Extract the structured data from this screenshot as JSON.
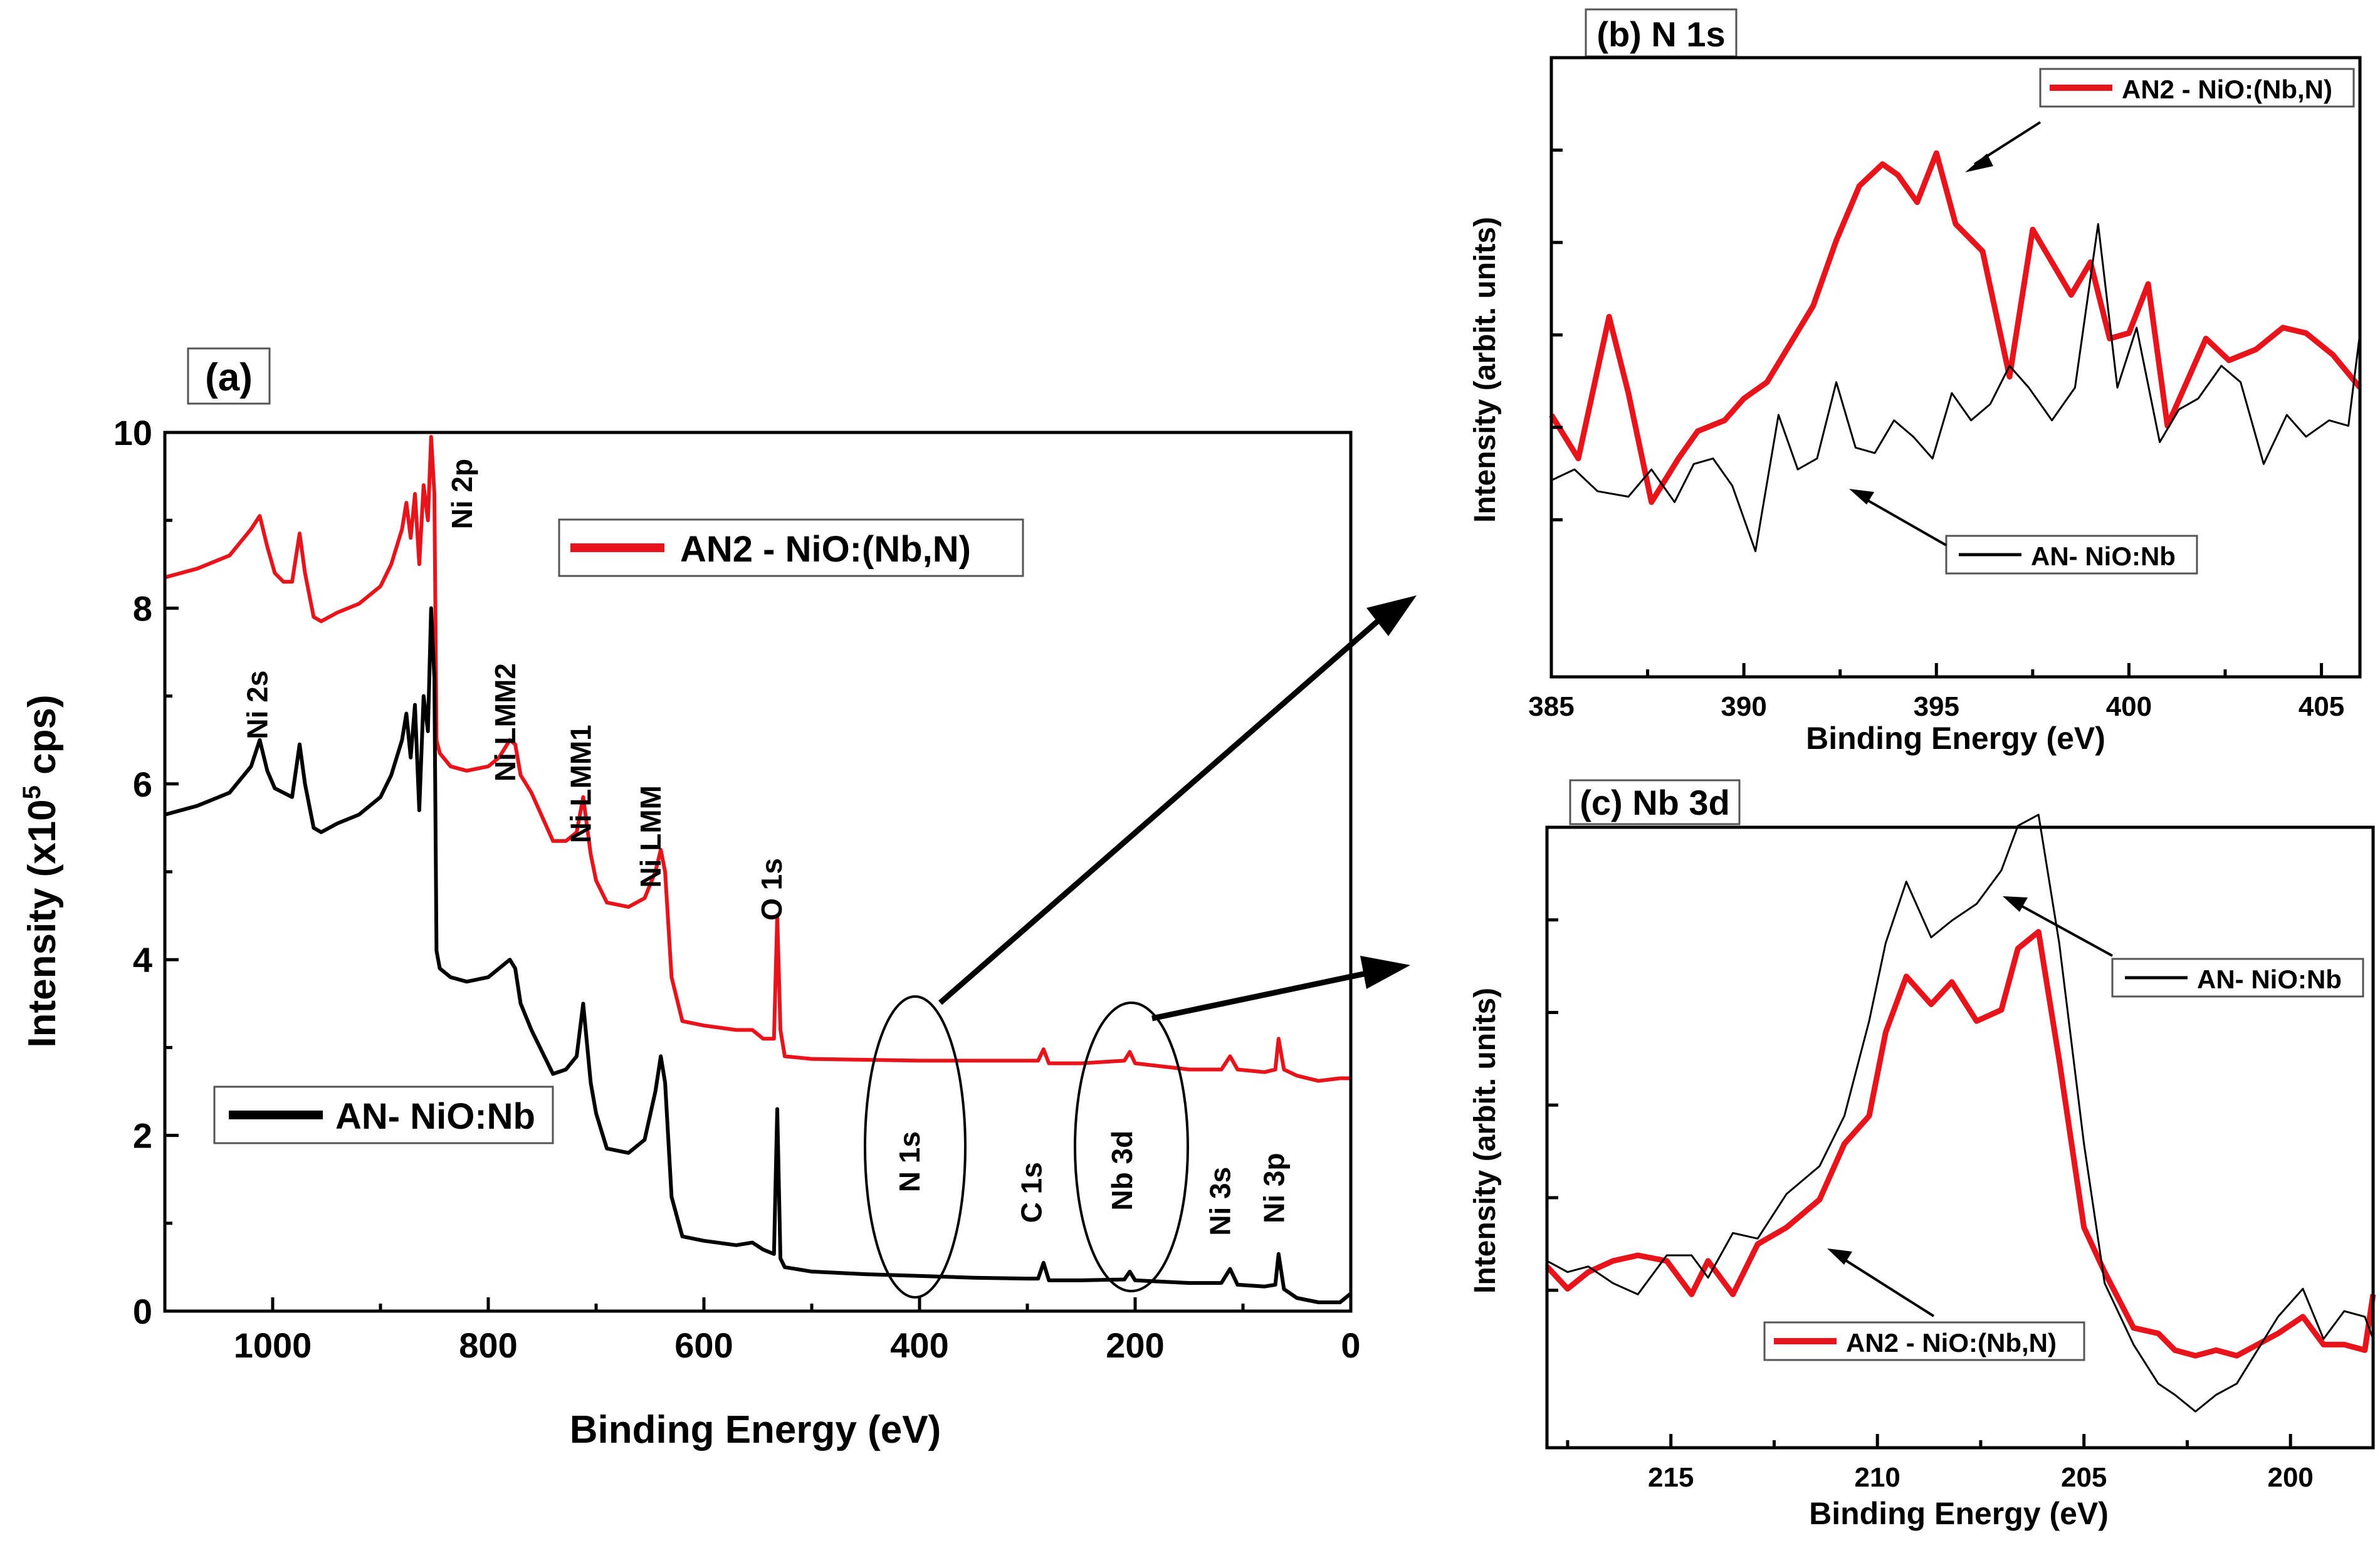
{
  "chart_data": [
    {
      "id": "a",
      "type": "line",
      "panel_label": "(a)",
      "xlabel": "Binding Energy (eV)",
      "ylabel_main": "Intensity (x10",
      "ylabel_sup": "5",
      "ylabel_end": " cps)",
      "xlim": [
        1100,
        0
      ],
      "ylim": [
        0,
        10
      ],
      "xticks": [
        1000,
        800,
        600,
        400,
        200,
        0
      ],
      "yticks": [
        0,
        2,
        4,
        6,
        8,
        10
      ],
      "series": [
        {
          "name": "AN2 - NiO:(Nb,N)",
          "color": "#e8141b",
          "x": [
            1100,
            1070,
            1040,
            1020,
            1012,
            1005,
            998,
            990,
            982,
            975,
            970,
            962,
            955,
            940,
            920,
            900,
            890,
            880,
            876,
            872,
            868,
            864,
            860,
            856,
            853,
            850,
            848,
            845,
            835,
            820,
            800,
            790,
            780,
            775,
            770,
            760,
            740,
            728,
            718,
            712,
            705,
            700,
            690,
            670,
            655,
            645,
            640,
            636,
            630,
            620,
            600,
            570,
            555,
            545,
            535,
            532,
            529,
            525,
            500,
            450,
            400,
            350,
            300,
            290,
            285,
            280,
            250,
            210,
            205,
            200,
            150,
            120,
            112,
            105,
            80,
            70,
            67,
            62,
            50,
            30,
            10,
            0
          ],
          "y": [
            8.35,
            8.45,
            8.6,
            8.9,
            9.05,
            8.7,
            8.4,
            8.3,
            8.3,
            8.85,
            8.4,
            7.9,
            7.85,
            7.95,
            8.05,
            8.25,
            8.5,
            8.9,
            9.2,
            8.8,
            9.3,
            8.5,
            9.4,
            9.0,
            9.95,
            9.3,
            6.5,
            6.35,
            6.2,
            6.15,
            6.2,
            6.3,
            6.5,
            6.45,
            6.1,
            5.9,
            5.35,
            5.35,
            5.45,
            5.85,
            5.2,
            4.9,
            4.65,
            4.6,
            4.7,
            5.0,
            5.25,
            5.0,
            3.8,
            3.3,
            3.25,
            3.2,
            3.2,
            3.1,
            3.1,
            4.5,
            3.2,
            2.9,
            2.87,
            2.86,
            2.85,
            2.85,
            2.85,
            2.85,
            2.98,
            2.82,
            2.82,
            2.85,
            2.95,
            2.82,
            2.75,
            2.75,
            2.9,
            2.75,
            2.72,
            2.75,
            3.1,
            2.75,
            2.68,
            2.62,
            2.65,
            2.65
          ]
        },
        {
          "name": "AN- NiO:Nb",
          "color": "#000000",
          "x": [
            1100,
            1070,
            1040,
            1020,
            1012,
            1005,
            998,
            990,
            982,
            975,
            970,
            962,
            955,
            940,
            920,
            900,
            890,
            880,
            876,
            872,
            868,
            864,
            860,
            856,
            853,
            850,
            848,
            845,
            835,
            820,
            800,
            790,
            780,
            775,
            770,
            760,
            740,
            728,
            718,
            712,
            705,
            700,
            690,
            670,
            655,
            645,
            640,
            636,
            630,
            620,
            600,
            570,
            555,
            545,
            535,
            532,
            529,
            525,
            500,
            450,
            400,
            350,
            300,
            290,
            285,
            280,
            250,
            210,
            205,
            200,
            150,
            120,
            112,
            105,
            80,
            70,
            67,
            62,
            50,
            30,
            10,
            0
          ],
          "y": [
            5.65,
            5.75,
            5.9,
            6.2,
            6.5,
            6.15,
            5.95,
            5.9,
            5.85,
            6.45,
            6.0,
            5.5,
            5.45,
            5.55,
            5.65,
            5.85,
            6.1,
            6.5,
            6.8,
            6.3,
            6.9,
            5.7,
            7.0,
            6.6,
            8.0,
            7.2,
            4.1,
            3.9,
            3.8,
            3.75,
            3.8,
            3.9,
            4.0,
            3.9,
            3.5,
            3.2,
            2.7,
            2.75,
            2.9,
            3.5,
            2.6,
            2.25,
            1.85,
            1.8,
            1.95,
            2.5,
            2.9,
            2.6,
            1.3,
            0.85,
            0.8,
            0.75,
            0.78,
            0.7,
            0.65,
            2.3,
            0.6,
            0.5,
            0.45,
            0.42,
            0.4,
            0.38,
            0.37,
            0.37,
            0.55,
            0.35,
            0.35,
            0.36,
            0.45,
            0.35,
            0.32,
            0.32,
            0.48,
            0.3,
            0.28,
            0.3,
            0.65,
            0.25,
            0.15,
            0.1,
            0.1,
            0.2
          ]
        }
      ],
      "legend": [
        {
          "name": "AN2 - NiO:(Nb,N)",
          "color": "#e8141b"
        },
        {
          "name": "AN- NiO:Nb",
          "color": "#000000"
        }
      ],
      "annotations": [
        {
          "text": "Ni 2s",
          "x": 1005,
          "y": 6.9
        },
        {
          "text": "Ni 2p",
          "x": 815,
          "y": 9.3
        },
        {
          "text": "Ni LMM2",
          "x": 775,
          "y": 6.7
        },
        {
          "text": "Ni LMM1",
          "x": 705,
          "y": 6.0
        },
        {
          "text": "Ni LMM",
          "x": 640,
          "y": 5.4
        },
        {
          "text": "O 1s",
          "x": 528,
          "y": 4.8
        },
        {
          "text": "N 1s",
          "x": 400,
          "y": 1.7
        },
        {
          "text": "C 1s",
          "x": 287,
          "y": 1.35
        },
        {
          "text": "Nb 3d",
          "x": 203,
          "y": 1.6
        },
        {
          "text": "Ni 3s",
          "x": 112,
          "y": 1.25
        },
        {
          "text": "Ni 3p",
          "x": 62,
          "y": 1.4
        }
      ]
    },
    {
      "id": "b",
      "type": "line",
      "panel_label": "(b) N 1s",
      "xlabel": "Binding Energy (eV)",
      "ylabel": "Intensity (arbit. units)",
      "xlim": [
        385,
        406
      ],
      "ylim": [
        0,
        1
      ],
      "xticks": [
        385,
        390,
        395,
        400,
        405
      ],
      "series": [
        {
          "name": "AN2 - NiO:(Nb,N)",
          "color": "#e8141b",
          "x": [
            385,
            385.7,
            386.5,
            387,
            387.6,
            388.3,
            388.8,
            389.5,
            390,
            390.6,
            391.2,
            391.8,
            392.4,
            393,
            393.6,
            394,
            394.5,
            395,
            395.5,
            396.2,
            396.9,
            397.5,
            398,
            398.5,
            399,
            399.5,
            400,
            400.5,
            401,
            401.5,
            402,
            402.6,
            403.3,
            404,
            404.6,
            405.3,
            406
          ],
          "y": [
            0.4,
            0.32,
            0.58,
            0.44,
            0.24,
            0.32,
            0.37,
            0.39,
            0.43,
            0.46,
            0.53,
            0.6,
            0.72,
            0.82,
            0.86,
            0.84,
            0.79,
            0.88,
            0.75,
            0.7,
            0.47,
            0.74,
            0.68,
            0.62,
            0.68,
            0.54,
            0.55,
            0.64,
            0.38,
            0.46,
            0.54,
            0.5,
            0.52,
            0.56,
            0.55,
            0.51,
            0.45
          ]
        },
        {
          "name": "AN- NiO:Nb",
          "color": "#000000",
          "x": [
            385,
            385.6,
            386.2,
            387,
            387.6,
            388.2,
            388.7,
            389.2,
            389.7,
            390.3,
            390.9,
            391.4,
            391.9,
            392.4,
            392.9,
            393.4,
            393.9,
            394.4,
            394.9,
            395.4,
            395.9,
            396.4,
            396.9,
            397.4,
            398,
            398.6,
            399.2,
            399.7,
            400.2,
            400.8,
            401.3,
            401.8,
            402.4,
            402.9,
            403.5,
            404.1,
            404.6,
            405.2,
            405.7,
            406
          ],
          "y": [
            0.28,
            0.3,
            0.26,
            0.25,
            0.3,
            0.24,
            0.31,
            0.32,
            0.27,
            0.15,
            0.4,
            0.3,
            0.32,
            0.46,
            0.34,
            0.33,
            0.39,
            0.36,
            0.32,
            0.44,
            0.39,
            0.42,
            0.49,
            0.45,
            0.39,
            0.45,
            0.75,
            0.45,
            0.56,
            0.35,
            0.41,
            0.43,
            0.49,
            0.46,
            0.31,
            0.4,
            0.36,
            0.39,
            0.38,
            0.55
          ]
        }
      ],
      "legend": [
        {
          "name": "AN2 - NiO:(Nb,N)",
          "color": "#e8141b"
        },
        {
          "name": "AN- NiO:Nb",
          "color": "#000000"
        }
      ]
    },
    {
      "id": "c",
      "type": "line",
      "panel_label": "(c) Nb 3d",
      "xlabel": "Binding Energy (eV)",
      "ylabel": "Intensity (arbit. units)",
      "xlim": [
        218,
        198
      ],
      "ylim": [
        0,
        1
      ],
      "xticks": [
        215,
        210,
        205,
        200
      ],
      "series": [
        {
          "name": "AN2 - NiO:(Nb,N)",
          "color": "#e8141b",
          "x": [
            218,
            217.5,
            217,
            216.4,
            215.8,
            215.1,
            214.5,
            214.1,
            213.5,
            212.9,
            212.2,
            211.4,
            210.8,
            210.2,
            209.8,
            209.3,
            208.7,
            208.2,
            207.6,
            207.0,
            206.6,
            206.1,
            205.6,
            205.0,
            204.5,
            203.8,
            203.2,
            202.8,
            202.3,
            201.8,
            201.3,
            200.8,
            200.3,
            199.7,
            199.2,
            198.7,
            198.2,
            198
          ],
          "y": [
            0.28,
            0.24,
            0.27,
            0.29,
            0.3,
            0.29,
            0.23,
            0.29,
            0.23,
            0.32,
            0.35,
            0.4,
            0.5,
            0.55,
            0.7,
            0.8,
            0.75,
            0.79,
            0.72,
            0.74,
            0.85,
            0.88,
            0.65,
            0.35,
            0.27,
            0.17,
            0.16,
            0.13,
            0.12,
            0.13,
            0.12,
            0.14,
            0.16,
            0.19,
            0.14,
            0.14,
            0.13,
            0.23
          ]
        },
        {
          "name": "AN- NiO:Nb",
          "color": "#000000",
          "x": [
            218,
            217.5,
            217,
            216.4,
            215.8,
            215.1,
            214.5,
            214.1,
            213.5,
            212.9,
            212.2,
            211.4,
            210.8,
            210.2,
            209.8,
            209.3,
            208.7,
            208.2,
            207.6,
            207.0,
            206.6,
            206.1,
            205.6,
            205.0,
            204.5,
            203.8,
            203.2,
            202.8,
            202.3,
            201.8,
            201.3,
            200.8,
            200.3,
            199.7,
            199.2,
            198.7,
            198.2,
            198
          ],
          "y": [
            0.29,
            0.27,
            0.28,
            0.25,
            0.23,
            0.3,
            0.3,
            0.26,
            0.34,
            0.33,
            0.41,
            0.46,
            0.55,
            0.72,
            0.86,
            0.97,
            0.87,
            0.9,
            0.93,
            0.99,
            1.07,
            1.09,
            0.86,
            0.5,
            0.25,
            0.14,
            0.07,
            0.05,
            0.02,
            0.05,
            0.07,
            0.13,
            0.19,
            0.24,
            0.15,
            0.2,
            0.19,
            0.15
          ]
        }
      ],
      "legend": [
        {
          "name": "AN- NiO:Nb",
          "color": "#000000"
        },
        {
          "name": "AN2 - NiO:(Nb,N)",
          "color": "#e8141b"
        }
      ]
    }
  ]
}
